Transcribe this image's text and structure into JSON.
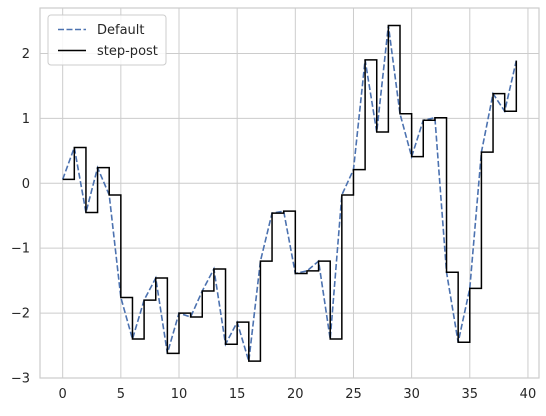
{
  "chart_data": {
    "type": "line",
    "title": "",
    "xlabel": "",
    "ylabel": "",
    "xlim": [
      -1.95,
      40.95
    ],
    "ylim": [
      -3,
      2.7
    ],
    "xticks": [
      0,
      5,
      10,
      15,
      20,
      25,
      30,
      35,
      40
    ],
    "yticks": [
      -3,
      -2,
      -1,
      0,
      1,
      2
    ],
    "grid": true,
    "legend": "top-left",
    "x": [
      0,
      1,
      2,
      3,
      4,
      5,
      6,
      7,
      8,
      9,
      10,
      11,
      12,
      13,
      14,
      15,
      16,
      17,
      18,
      19,
      20,
      21,
      22,
      23,
      24,
      25,
      26,
      27,
      28,
      29,
      30,
      31,
      32,
      33,
      34,
      35,
      36,
      37,
      38,
      39
    ],
    "series": [
      {
        "name": "Default",
        "style": "dashed",
        "color": "#4c72b0",
        "values": [
          0.06,
          0.55,
          -0.45,
          0.24,
          -0.18,
          -1.76,
          -2.4,
          -1.8,
          -1.46,
          -2.62,
          -2.0,
          -2.06,
          -1.66,
          -1.32,
          -2.48,
          -2.14,
          -2.74,
          -1.2,
          -0.46,
          -0.43,
          -1.39,
          -1.35,
          -1.2,
          -2.4,
          -0.18,
          0.21,
          1.9,
          0.79,
          2.43,
          1.07,
          0.41,
          0.97,
          1.01,
          -1.37,
          -2.45,
          -1.62,
          0.48,
          1.38,
          1.11,
          1.89
        ]
      },
      {
        "name": "step-post",
        "style": "solid",
        "color": "#000000",
        "values": [
          0.06,
          0.55,
          -0.45,
          0.24,
          -0.18,
          -1.76,
          -2.4,
          -1.8,
          -1.46,
          -2.62,
          -2.0,
          -2.06,
          -1.66,
          -1.32,
          -2.48,
          -2.14,
          -2.74,
          -1.2,
          -0.46,
          -0.43,
          -1.39,
          -1.35,
          -1.2,
          -2.4,
          -0.18,
          0.21,
          1.9,
          0.79,
          2.43,
          1.07,
          0.41,
          0.97,
          1.01,
          -1.37,
          -2.45,
          -1.62,
          0.48,
          1.38,
          1.11,
          1.89
        ]
      }
    ]
  }
}
